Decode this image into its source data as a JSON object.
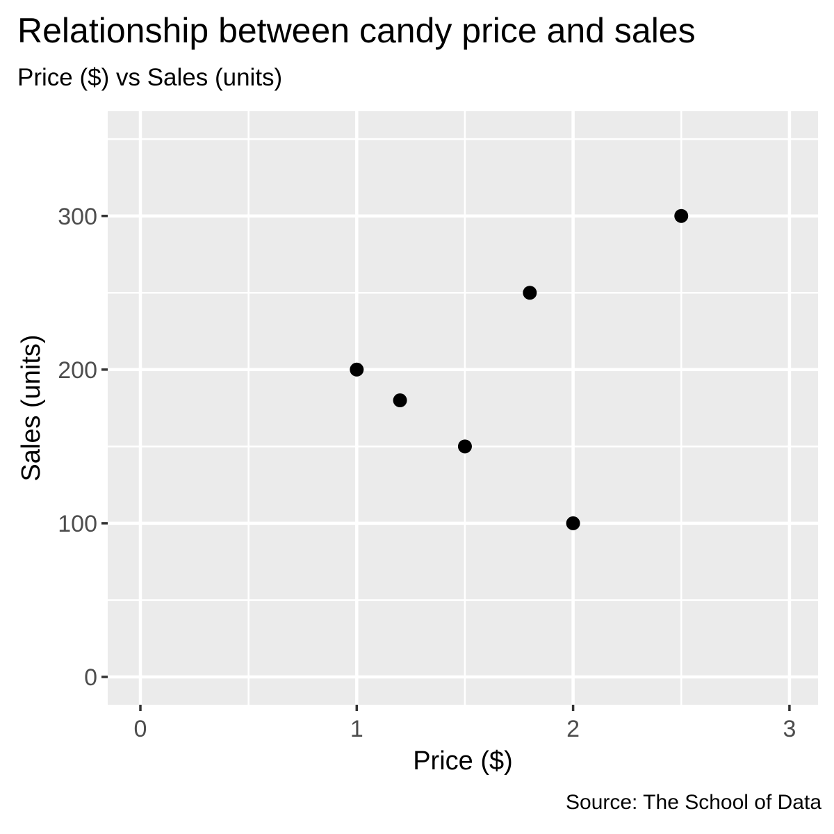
{
  "chart_data": {
    "type": "scatter",
    "title": "Relationship between candy price and sales",
    "subtitle": "Price ($) vs Sales (units)",
    "xlabel": "Price ($)",
    "ylabel": "Sales (units)",
    "caption": "Source: The School of Data",
    "points": [
      {
        "x": 1.0,
        "y": 200
      },
      {
        "x": 1.2,
        "y": 180
      },
      {
        "x": 1.5,
        "y": 150
      },
      {
        "x": 1.8,
        "y": 250
      },
      {
        "x": 2.0,
        "y": 100
      },
      {
        "x": 2.5,
        "y": 300
      }
    ],
    "x_ticks": [
      0,
      1,
      2,
      3
    ],
    "y_ticks": [
      0,
      100,
      200,
      300
    ],
    "x_minor_gridlines": [
      0.5,
      1.5,
      2.5
    ],
    "y_minor_gridlines": [
      50,
      150,
      250,
      350
    ],
    "xlim": [
      -0.15,
      3.15
    ],
    "ylim": [
      -17.5,
      367.5
    ],
    "grid": "major-and-minor",
    "legend": "none",
    "colors": {
      "point": "#000000",
      "panel_background": "#EBEBEB",
      "gridline": "#FFFFFF",
      "tick_label": "#4D4D4D",
      "tick_mark": "#333333",
      "text": "#000000",
      "background": "#FFFFFF"
    }
  }
}
